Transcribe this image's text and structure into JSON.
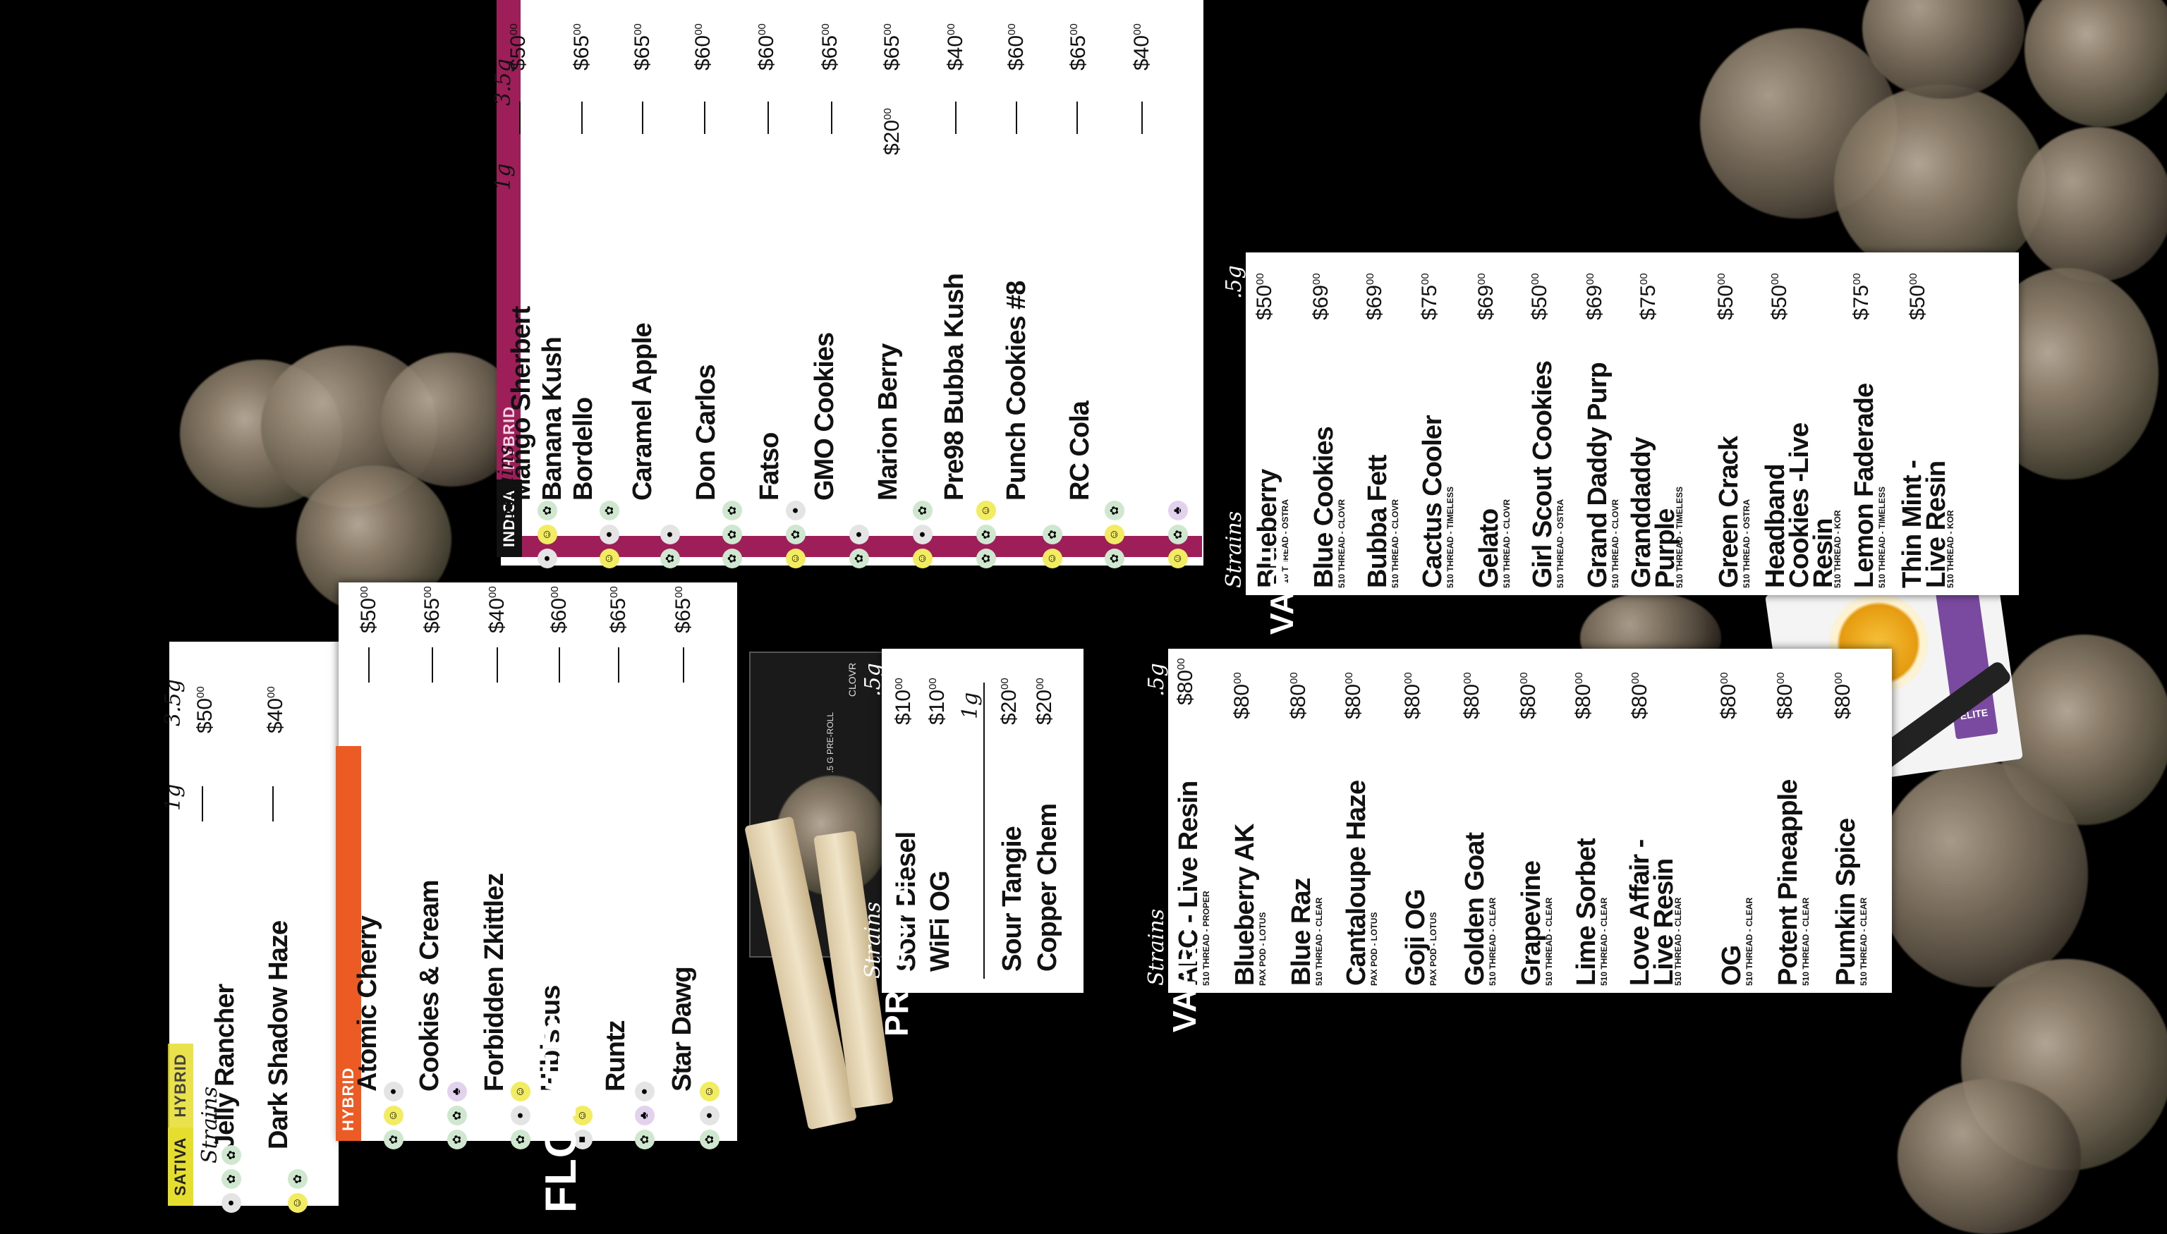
{
  "titles": {
    "flower": "FLOWER",
    "preroll": "PREROLL",
    "vape": "VAPE"
  },
  "col": {
    "strains": "Strains",
    "g1": "1g",
    "g35": "3.5g",
    "g5": ".5g"
  },
  "sativa": {
    "tag1": "SATIVA",
    "tag2": "HYBRID",
    "items": [
      {
        "name": "Jelly Rancher",
        "p1": "—",
        "p35": "$50",
        "icons": [
          "gray",
          "green",
          "teal"
        ]
      },
      {
        "name": "Dark Shadow Haze",
        "p1": "—",
        "p35": "$40",
        "icons": [
          "yellow",
          "teal"
        ]
      }
    ]
  },
  "hybrid": {
    "tag1": "HYBRID",
    "items": [
      {
        "name": "Atomic Cherry",
        "p1": "—",
        "p35": "$50",
        "icons": [
          "gray",
          "yellow",
          "green"
        ]
      },
      {
        "name": "Cookies & Cream",
        "p1": "—",
        "p35": "$65",
        "icons": [
          "purple",
          "teal",
          "gray"
        ]
      },
      {
        "name": "Forbidden Zkittlez",
        "p1": "—",
        "p35": "$40",
        "icons": [
          "yellow",
          "gray",
          "green"
        ]
      },
      {
        "name": "Hibiscus",
        "p1": "—",
        "p35": "$60",
        "icons": [
          "yellow",
          "brown"
        ]
      },
      {
        "name": "Runtz",
        "p1": "—",
        "p35": "$65",
        "icons": [
          "gray",
          "purple",
          "teal"
        ]
      },
      {
        "name": "Star Dawg",
        "p1": "—",
        "p35": "$65",
        "icons": [
          "yellow",
          "gray",
          "teal"
        ]
      }
    ]
  },
  "indica": {
    "tag1": "INDICA",
    "tag2": "HYBRID",
    "items": [
      {
        "name": "Mango Sherbert",
        "p1": "—",
        "p35": "$50",
        "icons": [
          "teal",
          "yellow",
          "gray"
        ]
      },
      {
        "name": "Banana Kush",
        "p1": "—",
        "p35": "$65",
        "icons": [
          "teal",
          "gray",
          "yellow"
        ]
      },
      {
        "name": "Bordello",
        "p1": "—",
        "p35": "$65",
        "icons": [
          "gray",
          "teal"
        ]
      },
      {
        "name": "Caramel Apple",
        "p1": "—",
        "p35": "$60",
        "icons": [
          "green",
          "teal",
          "green"
        ]
      },
      {
        "name": "Don Carlos",
        "p1": "—",
        "p35": "$60",
        "icons": [
          "gray",
          "teal",
          "yellow"
        ]
      },
      {
        "name": "Fatso",
        "p1": "—",
        "p35": "$65",
        "icons": [
          "teal",
          "gray"
        ]
      },
      {
        "name": "GMO Cookies",
        "p1": "$20",
        "p35": "$65",
        "icons": [
          "teal",
          "gray",
          "yellow"
        ]
      },
      {
        "name": "Marion Berry",
        "p1": "—",
        "p35": "$40",
        "icons": [
          "yellow",
          "teal",
          "teal"
        ]
      },
      {
        "name": "Pre98 Bubba Kush",
        "p1": "—",
        "p35": "$60",
        "icons": [
          "teal",
          "yellow"
        ]
      },
      {
        "name": "Punch Cookies #8",
        "p1": "—",
        "p35": "$65",
        "icons": [
          "teal",
          "yellow",
          "teal"
        ]
      },
      {
        "name": "RC Cola",
        "p1": "—",
        "p35": "$40",
        "icons": [
          "purple",
          "teal",
          "yellow"
        ]
      }
    ]
  },
  "preroll": {
    "items": [
      {
        "name": "Sour Diesel",
        "price": "$10"
      },
      {
        "name": "WiFi OG",
        "price": "$10"
      },
      {
        "name": "Sour Tangie",
        "price": "$20"
      },
      {
        "name": "Copper Chem",
        "price": "$20"
      }
    ],
    "pkg_brand": "CLOVR",
    "pkg_label": ".5 G PRE-ROLL"
  },
  "vape_left": {
    "items": [
      {
        "name": "ARC - Live Resin",
        "sub": "510 THREAD - PROPER",
        "price": "$80"
      },
      {
        "name": "Blueberry AK",
        "sub": "PAX POD - LOTUS",
        "price": "$80"
      },
      {
        "name": "Blue Raz",
        "sub": "510 THREAD - CLEAR",
        "price": "$80"
      },
      {
        "name": "Cantaloupe Haze",
        "sub": "PAX POD - LOTUS",
        "price": "$80"
      },
      {
        "name": "Goji OG",
        "sub": "PAX POD - LOTUS",
        "price": "$80"
      },
      {
        "name": "Golden Goat",
        "sub": "510 THREAD - CLEAR",
        "price": "$80"
      },
      {
        "name": "Grapevine",
        "sub": "510 THREAD - CLEAR",
        "price": "$80"
      },
      {
        "name": "Lime Sorbet",
        "sub": "510 THREAD - CLEAR",
        "price": "$80"
      },
      {
        "name": "Love Affair - Live Resin",
        "sub": "510 THREAD - CLEAR",
        "price": "$80"
      },
      {
        "name": "OG",
        "sub": "510 THREAD - CLEAR",
        "price": "$80"
      },
      {
        "name": "Potent Pineapple",
        "sub": "510 THREAD - CLEAR",
        "price": "$80"
      },
      {
        "name": "Pumkin Spice",
        "sub": "510 THREAD - CLEAR",
        "price": "$80"
      }
    ]
  },
  "vape_right": {
    "items": [
      {
        "name": "Blueberry",
        "sub": "510 THREAD - OSTRA",
        "price": "$50"
      },
      {
        "name": "Blue Cookies",
        "sub": "510 THREAD - CLOVR",
        "price": "$69"
      },
      {
        "name": "Bubba Fett",
        "sub": "510 THREAD - CLOVR",
        "price": "$69"
      },
      {
        "name": "Cactus Cooler",
        "sub": "510 THREAD - TIMELESS",
        "price": "$75"
      },
      {
        "name": "Gelato",
        "sub": "510 THREAD - CLOVR",
        "price": "$69"
      },
      {
        "name": "Girl Scout Cookies",
        "sub": "510 THREAD - OSTRA",
        "price": "$50"
      },
      {
        "name": "Grand Daddy Purp",
        "sub": "510 THREAD - CLOVR",
        "price": "$69"
      },
      {
        "name": "Granddaddy Purple",
        "sub": "510 THREAD - TIMELESS",
        "price": "$75"
      },
      {
        "name": "Green Crack",
        "sub": "510 THREAD - OSTRA",
        "price": "$50"
      },
      {
        "name": "Headband Cookies -Live Resin",
        "sub": "510 THREAD - KOR",
        "price": "$50"
      },
      {
        "name": "Lemon Faderade",
        "sub": "510 THREAD - TIMELESS",
        "price": "$75"
      },
      {
        "name": "Thin Mint - Live Resin",
        "sub": "510 THREAD - KOR",
        "price": "$50"
      }
    ],
    "pkg_label": "ELITE"
  },
  "cents": "00",
  "colors": {
    "sativa": "#e6de2e",
    "hybrid": "#ec5b24",
    "indica": "#9e1e5a",
    "bg": "#000000"
  }
}
